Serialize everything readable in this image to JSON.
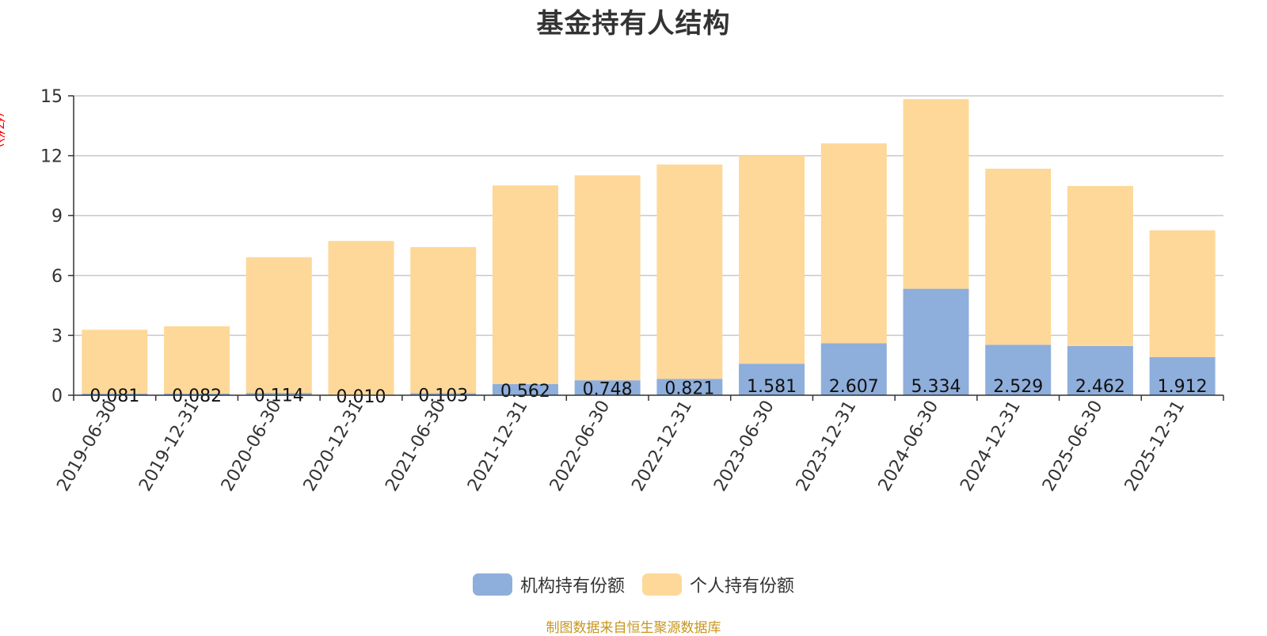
{
  "chart_data": {
    "type": "bar",
    "stacked": true,
    "title": "基金持有人结构",
    "ylabel": "(亿份)",
    "ylim": [
      0,
      15
    ],
    "yticks": [
      0,
      3,
      6,
      9,
      12,
      15
    ],
    "grid": true,
    "legend_position": "bottom",
    "categories": [
      "2019-06-30",
      "2019-12-31",
      "2020-06-30",
      "2020-12-31",
      "2021-06-30",
      "2021-12-31",
      "2022-06-30",
      "2022-12-31",
      "2023-06-30",
      "2023-12-31",
      "2024-06-30",
      "2024-12-31",
      "2025-06-30",
      "2025-12-31"
    ],
    "series": [
      {
        "name": "机构持有份额",
        "color": "#8eaedb",
        "values": [
          0.081,
          0.082,
          0.114,
          0.01,
          0.103,
          0.562,
          0.748,
          0.821,
          1.581,
          2.607,
          5.334,
          2.529,
          2.462,
          1.912
        ],
        "labels": [
          "0.081",
          "0.082",
          "0.114",
          "0.010",
          "0.103",
          "0.562",
          "0.748",
          "0.821",
          "1.581",
          "2.607",
          "5.334",
          "2.529",
          "2.462",
          "1.912"
        ]
      },
      {
        "name": "个人持有份额",
        "color": "#fed898",
        "values": [
          3.2,
          3.37,
          6.8,
          7.72,
          7.32,
          9.95,
          10.27,
          10.74,
          10.42,
          10.01,
          9.5,
          8.82,
          8.02,
          6.35
        ]
      }
    ]
  },
  "footer": {
    "source": "制图数据来自恒生聚源数据库"
  }
}
